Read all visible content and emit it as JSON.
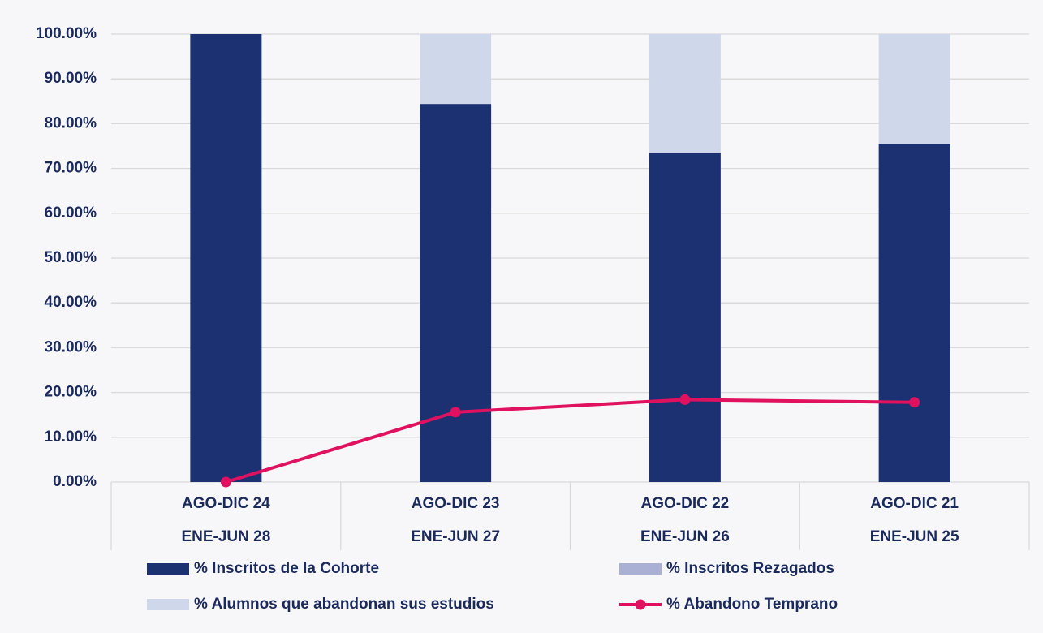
{
  "chart_data": {
    "type": "bar",
    "stacked": true,
    "categories": [
      [
        "AGO-DIC 24",
        "ENE-JUN 28"
      ],
      [
        "AGO-DIC 23",
        "ENE-JUN 27"
      ],
      [
        "AGO-DIC 22",
        "ENE-JUN 26"
      ],
      [
        "AGO-DIC 21",
        "ENE-JUN 25"
      ]
    ],
    "series": [
      {
        "name": "% Inscritos de la Cohorte",
        "type": "bar",
        "color": "#1b3171",
        "values": [
          100,
          84.4,
          73.4,
          75.5
        ]
      },
      {
        "name": "% Inscritos Rezagados",
        "type": "bar",
        "color": "#a9b0d4",
        "values": [
          0,
          0,
          0,
          0
        ]
      },
      {
        "name": "% Alumnos que abandonan sus estudios",
        "type": "bar",
        "color": "#cfd8ea",
        "values": [
          0,
          15.6,
          26.6,
          24.5
        ]
      },
      {
        "name": "% Abandono Temprano",
        "type": "line",
        "color": "#e0115f",
        "values": [
          0,
          15.6,
          18.4,
          17.8
        ]
      }
    ],
    "ylim": [
      0,
      100
    ],
    "yticks": [
      {
        "value": 0,
        "label": "0.00%"
      },
      {
        "value": 10,
        "label": "10.00%"
      },
      {
        "value": 20,
        "label": "20.00%"
      },
      {
        "value": 30,
        "label": "30.00%"
      },
      {
        "value": 40,
        "label": "40.00%"
      },
      {
        "value": 50,
        "label": "50.00%"
      },
      {
        "value": 60,
        "label": "60.00%"
      },
      {
        "value": 70,
        "label": "70.00%"
      },
      {
        "value": 80,
        "label": "80.00%"
      },
      {
        "value": 90,
        "label": "90.00%"
      },
      {
        "value": 100,
        "label": "100.00%"
      }
    ],
    "grid": true,
    "legend": "bottom"
  }
}
